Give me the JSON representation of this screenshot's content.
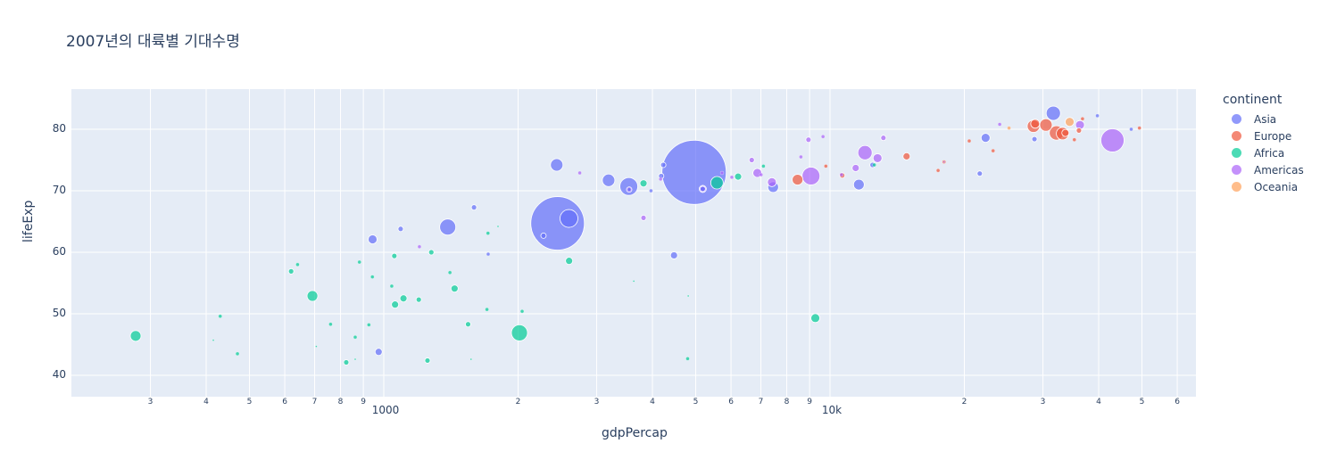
{
  "title": "2007년의 대륙별 기대수명",
  "legend": {
    "title": "continent",
    "items": [
      {
        "label": "Asia",
        "color": "#636efa"
      },
      {
        "label": "Europe",
        "color": "#ef553b"
      },
      {
        "label": "Africa",
        "color": "#00cc96"
      },
      {
        "label": "Americas",
        "color": "#ab63fa"
      },
      {
        "label": "Oceania",
        "color": "#ffa15a"
      }
    ]
  },
  "axes": {
    "x": {
      "label": "gdpPercap",
      "type": "log",
      "major_ticks": [
        {
          "value": 1000,
          "label": "1000"
        },
        {
          "value": 10000,
          "label": "10k"
        }
      ],
      "minor_ticks": [
        {
          "value": 300,
          "label": "3"
        },
        {
          "value": 400,
          "label": "4"
        },
        {
          "value": 500,
          "label": "5"
        },
        {
          "value": 600,
          "label": "6"
        },
        {
          "value": 700,
          "label": "7"
        },
        {
          "value": 800,
          "label": "8"
        },
        {
          "value": 900,
          "label": "9"
        },
        {
          "value": 2000,
          "label": "2"
        },
        {
          "value": 3000,
          "label": "3"
        },
        {
          "value": 4000,
          "label": "4"
        },
        {
          "value": 5000,
          "label": "5"
        },
        {
          "value": 6000,
          "label": "6"
        },
        {
          "value": 7000,
          "label": "7"
        },
        {
          "value": 8000,
          "label": "8"
        },
        {
          "value": 9000,
          "label": "9"
        },
        {
          "value": 20000,
          "label": "2"
        },
        {
          "value": 30000,
          "label": "3"
        },
        {
          "value": 40000,
          "label": "4"
        },
        {
          "value": 50000,
          "label": "5"
        },
        {
          "value": 60000,
          "label": "6"
        }
      ]
    },
    "y": {
      "label": "lifeExp",
      "ticks": [
        {
          "value": 40,
          "label": "40"
        },
        {
          "value": 50,
          "label": "50"
        },
        {
          "value": 60,
          "label": "60"
        },
        {
          "value": 70,
          "label": "70"
        },
        {
          "value": 80,
          "label": "80"
        }
      ]
    }
  },
  "chart_data": {
    "type": "scatter",
    "title": "2007년의 대륙별 기대수명",
    "xlabel": "gdpPercap",
    "ylabel": "lifeExp",
    "x_scale": "log",
    "xlim": [
      180,
      70000
    ],
    "ylim": [
      36.5,
      86.5
    ],
    "grid": true,
    "legend_position": "right",
    "legend_title": "continent",
    "size_encoding": "pop",
    "series": [
      {
        "name": "Asia",
        "color": "#636efa",
        "points": [
          {
            "x": 2452,
            "y": 64.7,
            "r": 30
          },
          {
            "x": 4959,
            "y": 73.0,
            "r": 36
          },
          {
            "x": 2600,
            "y": 65.5,
            "r": 10
          },
          {
            "x": 3541,
            "y": 70.7,
            "r": 10
          },
          {
            "x": 1391,
            "y": 64.1,
            "r": 9
          },
          {
            "x": 2441,
            "y": 74.2,
            "r": 7
          },
          {
            "x": 3190,
            "y": 71.7,
            "r": 7
          },
          {
            "x": 31656,
            "y": 82.6,
            "r": 8
          },
          {
            "x": 944,
            "y": 62.1,
            "r": 5
          },
          {
            "x": 7458,
            "y": 70.6,
            "r": 6
          },
          {
            "x": 11606,
            "y": 71.0,
            "r": 6
          },
          {
            "x": 4471,
            "y": 59.5,
            "r": 4
          },
          {
            "x": 974,
            "y": 43.8,
            "r": 4
          },
          {
            "x": 1593,
            "y": 67.3,
            "r": 3
          },
          {
            "x": 1091,
            "y": 63.8,
            "r": 3
          },
          {
            "x": 4185,
            "y": 72.4,
            "r": 3
          },
          {
            "x": 22316,
            "y": 78.6,
            "r": 5
          },
          {
            "x": 21655,
            "y": 72.8,
            "r": 3
          },
          {
            "x": 28718,
            "y": 78.4,
            "r": 3
          },
          {
            "x": 12452,
            "y": 74.2,
            "r": 3
          },
          {
            "x": 4230,
            "y": 74.2,
            "r": 3
          },
          {
            "x": 1714,
            "y": 59.7,
            "r": 2
          },
          {
            "x": 2280,
            "y": 62.7,
            "r": 3
          },
          {
            "x": 3549,
            "y": 70.2,
            "r": 2
          },
          {
            "x": 5186,
            "y": 70.3,
            "r": 3
          },
          {
            "x": 39725,
            "y": 82.2,
            "r": 2
          },
          {
            "x": 47307,
            "y": 80.0,
            "r": 2
          },
          {
            "x": 3970,
            "y": 70.0,
            "r": 2
          }
        ]
      },
      {
        "name": "Europe",
        "color": "#ef553b",
        "points": [
          {
            "x": 32170,
            "y": 79.4,
            "r": 8
          },
          {
            "x": 30470,
            "y": 80.7,
            "r": 7
          },
          {
            "x": 28570,
            "y": 80.5,
            "r": 7
          },
          {
            "x": 33203,
            "y": 79.3,
            "r": 7
          },
          {
            "x": 8458,
            "y": 71.8,
            "r": 6
          },
          {
            "x": 28821,
            "y": 80.9,
            "r": 5
          },
          {
            "x": 14843,
            "y": 75.6,
            "r": 4
          },
          {
            "x": 33692,
            "y": 79.4,
            "r": 4
          },
          {
            "x": 36126,
            "y": 79.8,
            "r": 3
          },
          {
            "x": 10650,
            "y": 72.5,
            "r": 3
          },
          {
            "x": 17468,
            "y": 73.3,
            "r": 2
          },
          {
            "x": 20510,
            "y": 78.1,
            "r": 2
          },
          {
            "x": 36797,
            "y": 81.7,
            "r": 2
          },
          {
            "x": 35278,
            "y": 78.3,
            "r": 2
          },
          {
            "x": 18009,
            "y": 74.7,
            "r": 2
          },
          {
            "x": 49357,
            "y": 80.2,
            "r": 2
          },
          {
            "x": 9787,
            "y": 74.0,
            "r": 2
          },
          {
            "x": 23196,
            "y": 76.5,
            "r": 2
          }
        ]
      },
      {
        "name": "Africa",
        "color": "#00cc96",
        "points": [
          {
            "x": 278,
            "y": 46.4,
            "r": 6
          },
          {
            "x": 2014,
            "y": 46.9,
            "r": 9
          },
          {
            "x": 692,
            "y": 52.9,
            "r": 6
          },
          {
            "x": 5581,
            "y": 71.3,
            "r": 7
          },
          {
            "x": 9270,
            "y": 49.3,
            "r": 5
          },
          {
            "x": 1441,
            "y": 54.1,
            "r": 4
          },
          {
            "x": 2602,
            "y": 58.6,
            "r": 4
          },
          {
            "x": 1060,
            "y": 51.5,
            "r": 4
          },
          {
            "x": 1107,
            "y": 52.5,
            "r": 4
          },
          {
            "x": 3820,
            "y": 71.2,
            "r": 4
          },
          {
            "x": 6223,
            "y": 72.3,
            "r": 4
          },
          {
            "x": 824,
            "y": 42.1,
            "r": 3
          },
          {
            "x": 1278,
            "y": 60.0,
            "r": 3
          },
          {
            "x": 1056,
            "y": 59.4,
            "r": 3
          },
          {
            "x": 620,
            "y": 56.9,
            "r": 3
          },
          {
            "x": 1545,
            "y": 48.3,
            "r": 3
          },
          {
            "x": 1198,
            "y": 52.3,
            "r": 3
          },
          {
            "x": 1253,
            "y": 42.4,
            "r": 3
          },
          {
            "x": 760,
            "y": 48.3,
            "r": 2
          },
          {
            "x": 943,
            "y": 56.0,
            "r": 2
          },
          {
            "x": 1042,
            "y": 54.5,
            "r": 2
          },
          {
            "x": 2042,
            "y": 50.4,
            "r": 2
          },
          {
            "x": 1703,
            "y": 50.7,
            "r": 2
          },
          {
            "x": 4797,
            "y": 42.7,
            "r": 2
          },
          {
            "x": 430,
            "y": 49.6,
            "r": 2
          },
          {
            "x": 470,
            "y": 43.5,
            "r": 2
          },
          {
            "x": 863,
            "y": 46.2,
            "r": 2
          },
          {
            "x": 926,
            "y": 48.2,
            "r": 2
          },
          {
            "x": 1712,
            "y": 63.1,
            "r": 2
          },
          {
            "x": 1407,
            "y": 56.7,
            "r": 2
          },
          {
            "x": 7092,
            "y": 74.0,
            "r": 2
          },
          {
            "x": 641,
            "y": 58.0,
            "r": 2
          },
          {
            "x": 882,
            "y": 58.4,
            "r": 2
          },
          {
            "x": 3633,
            "y": 55.3,
            "r": 1
          },
          {
            "x": 12570,
            "y": 74.2,
            "r": 2
          },
          {
            "x": 706,
            "y": 44.7,
            "r": 1
          },
          {
            "x": 415,
            "y": 45.7,
            "r": 1
          },
          {
            "x": 1569,
            "y": 42.6,
            "r": 1
          },
          {
            "x": 1803,
            "y": 64.2,
            "r": 1
          },
          {
            "x": 4811,
            "y": 52.9,
            "r": 1
          },
          {
            "x": 863,
            "y": 42.6,
            "r": 1
          }
        ]
      },
      {
        "name": "Americas",
        "color": "#ab63fa",
        "points": [
          {
            "x": 42952,
            "y": 78.2,
            "r": 13
          },
          {
            "x": 9066,
            "y": 72.4,
            "r": 10
          },
          {
            "x": 11978,
            "y": 76.2,
            "r": 8
          },
          {
            "x": 36319,
            "y": 80.7,
            "r": 5
          },
          {
            "x": 6873,
            "y": 72.9,
            "r": 5
          },
          {
            "x": 7409,
            "y": 71.4,
            "r": 5
          },
          {
            "x": 12779,
            "y": 75.3,
            "r": 5
          },
          {
            "x": 11416,
            "y": 73.7,
            "r": 4
          },
          {
            "x": 5186,
            "y": 70.3,
            "r": 4
          },
          {
            "x": 3548,
            "y": 70.2,
            "r": 3
          },
          {
            "x": 13172,
            "y": 78.6,
            "r": 3
          },
          {
            "x": 8948,
            "y": 78.3,
            "r": 3
          },
          {
            "x": 6677,
            "y": 75.0,
            "r": 3
          },
          {
            "x": 3820,
            "y": 65.6,
            "r": 3
          },
          {
            "x": 4173,
            "y": 71.9,
            "r": 2
          },
          {
            "x": 1202,
            "y": 60.9,
            "r": 2
          },
          {
            "x": 5728,
            "y": 72.9,
            "r": 2
          },
          {
            "x": 7007,
            "y": 72.6,
            "r": 2
          },
          {
            "x": 2749,
            "y": 72.9,
            "r": 2
          },
          {
            "x": 6025,
            "y": 72.2,
            "r": 2
          },
          {
            "x": 9645,
            "y": 78.8,
            "r": 2
          },
          {
            "x": 10611,
            "y": 72.6,
            "r": 2
          },
          {
            "x": 8605,
            "y": 75.5,
            "r": 2
          },
          {
            "x": 18009,
            "y": 74.7,
            "r": 1
          },
          {
            "x": 24000,
            "y": 80.8,
            "r": 2
          }
        ]
      },
      {
        "name": "Oceania",
        "color": "#ffa15a",
        "points": [
          {
            "x": 34435,
            "y": 81.2,
            "r": 5
          },
          {
            "x": 25185,
            "y": 80.2,
            "r": 2
          }
        ]
      }
    ]
  }
}
